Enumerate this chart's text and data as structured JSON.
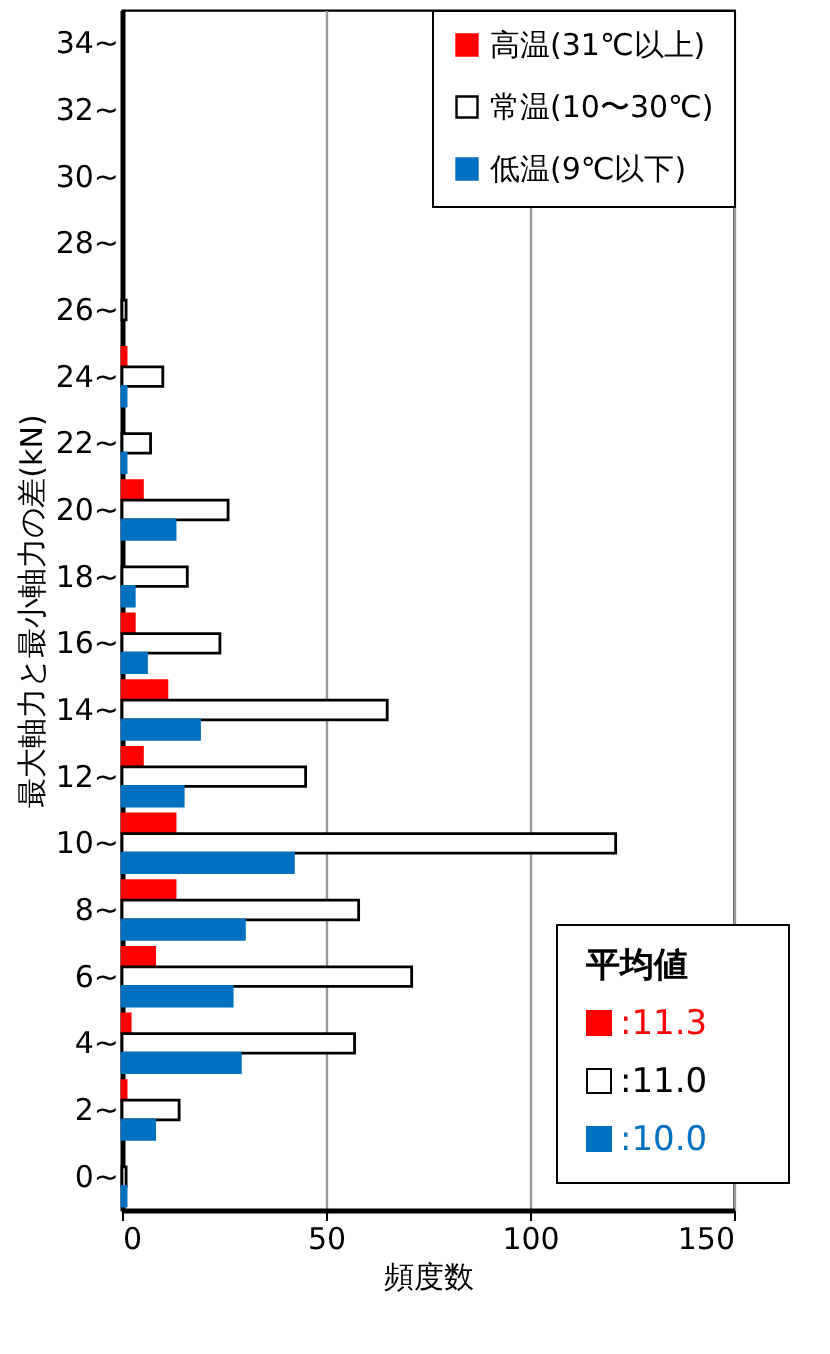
{
  "chart_data": {
    "type": "bar",
    "orientation": "horizontal",
    "xlabel": "頻度数",
    "ylabel": "最大軸力と最小軸力の差(kN)",
    "categories": [
      "34~",
      "32~",
      "30~",
      "28~",
      "26~",
      "24~",
      "22~",
      "20~",
      "18~",
      "16~",
      "14~",
      "12~",
      "10~",
      "8~",
      "6~",
      "4~",
      "2~",
      "0~"
    ],
    "series": [
      {
        "name": "高温(31℃以上)",
        "color": "#ff0000",
        "values": [
          0,
          0,
          0,
          0,
          0,
          1,
          0,
          5,
          0,
          3,
          11,
          5,
          13,
          13,
          8,
          2,
          1,
          0
        ]
      },
      {
        "name": "常温(10〜30℃)",
        "color": "#ffffff",
        "values": [
          0,
          0,
          0,
          0,
          1,
          10,
          7,
          26,
          16,
          24,
          65,
          45,
          121,
          58,
          71,
          57,
          14,
          1
        ]
      },
      {
        "name": "低温(9℃以下)",
        "color": "#0070c0",
        "values": [
          0,
          0,
          0,
          0,
          0,
          1,
          1,
          13,
          3,
          6,
          19,
          15,
          42,
          30,
          27,
          29,
          8,
          1
        ]
      }
    ],
    "xlim": [
      0,
      150
    ],
    "xticks": [
      0,
      50,
      100,
      150
    ],
    "grid": "x",
    "legend": "top right",
    "annotations": [
      "平均値",
      ":11.3",
      ":11.0",
      ":10.0"
    ]
  }
}
